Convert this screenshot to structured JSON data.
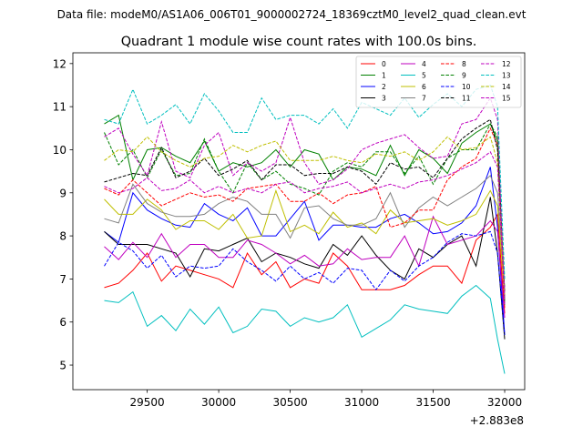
{
  "figure": {
    "suptitle": "Data file: modeM0/AS1A06_006T01_9000002724_18369cztM0_level2_quad_clean.evt"
  },
  "chart_data": {
    "type": "line",
    "title": "Quadrant 1 module wise count rates with 100.0s bins.",
    "xlabel": "",
    "ylabel": "",
    "x_offset_label": "+2.883e8",
    "xlim": [
      28980,
      32140
    ],
    "ylim": [
      4.43,
      12.25
    ],
    "x_ticks": [
      29500,
      30000,
      30500,
      31000,
      31500,
      32000
    ],
    "x_tick_labels": [
      "29500",
      "30000",
      "30500",
      "31000",
      "31500",
      "32000"
    ],
    "y_ticks": [
      5,
      6,
      7,
      8,
      9,
      10,
      11,
      12
    ],
    "y_tick_labels": [
      "5",
      "6",
      "7",
      "8",
      "9",
      "10",
      "11",
      "12"
    ],
    "grid": false,
    "legend_position": "upper right",
    "x": [
      29200,
      29300,
      29400,
      29500,
      29600,
      29700,
      29800,
      29900,
      30000,
      30100,
      30200,
      30300,
      30400,
      30500,
      30600,
      30700,
      30800,
      30900,
      31000,
      31100,
      31200,
      31300,
      31400,
      31500,
      31600,
      31700,
      31800,
      31900,
      31950,
      32000
    ],
    "series": [
      {
        "name": "0",
        "color": "#ff0000",
        "dash": "solid",
        "values": [
          6.8,
          6.9,
          7.2,
          7.6,
          6.95,
          7.3,
          7.2,
          7.1,
          7.0,
          6.8,
          7.6,
          7.1,
          7.4,
          6.8,
          7.0,
          6.9,
          7.6,
          7.3,
          6.75,
          6.75,
          6.75,
          6.85,
          7.1,
          7.3,
          7.3,
          6.9,
          7.9,
          8.2,
          8.5,
          6.2
        ]
      },
      {
        "name": "1",
        "color": "#008000",
        "dash": "solid",
        "values": [
          10.6,
          10.8,
          9.3,
          10.0,
          10.05,
          9.85,
          9.7,
          10.2,
          9.5,
          9.7,
          9.6,
          9.7,
          10.0,
          9.6,
          10.0,
          9.9,
          9.3,
          9.6,
          9.55,
          9.4,
          10.1,
          9.4,
          10.0,
          9.8,
          9.45,
          10.15,
          10.4,
          10.6,
          10.2,
          6.5
        ]
      },
      {
        "name": "2",
        "color": "#0000ff",
        "dash": "solid",
        "values": [
          8.1,
          7.85,
          9.0,
          8.6,
          8.4,
          8.25,
          8.2,
          8.75,
          8.5,
          8.35,
          8.65,
          8.0,
          8.0,
          8.4,
          8.8,
          7.9,
          8.25,
          8.25,
          8.2,
          8.2,
          8.4,
          8.5,
          8.3,
          8.05,
          8.1,
          8.3,
          8.7,
          9.6,
          8.2,
          5.7
        ]
      },
      {
        "name": "3",
        "color": "#000000",
        "dash": "solid",
        "values": [
          8.1,
          7.8,
          7.8,
          7.8,
          7.7,
          7.6,
          7.05,
          7.7,
          7.65,
          7.8,
          7.95,
          7.4,
          7.6,
          7.5,
          7.35,
          7.25,
          7.8,
          7.55,
          8.0,
          7.55,
          7.2,
          7.0,
          7.7,
          7.5,
          7.8,
          8.0,
          7.3,
          8.9,
          7.6,
          5.6
        ]
      },
      {
        "name": "4",
        "color": "#bf00bf",
        "dash": "solid",
        "values": [
          7.75,
          7.45,
          7.85,
          7.5,
          8.05,
          7.5,
          7.8,
          7.8,
          7.5,
          7.5,
          7.9,
          7.8,
          7.6,
          7.35,
          7.55,
          7.3,
          7.35,
          7.7,
          7.45,
          7.5,
          7.5,
          8.0,
          7.3,
          8.45,
          7.8,
          7.9,
          8.0,
          8.35,
          8.1,
          6.1
        ]
      },
      {
        "name": "5",
        "color": "#00bfbf",
        "dash": "solid",
        "values": [
          6.5,
          6.45,
          6.7,
          5.9,
          6.15,
          5.8,
          6.3,
          5.95,
          6.35,
          5.75,
          5.9,
          6.3,
          6.25,
          5.9,
          6.1,
          6.0,
          6.1,
          6.4,
          5.65,
          5.85,
          6.05,
          6.4,
          6.3,
          6.25,
          6.2,
          6.6,
          6.85,
          6.55,
          5.6,
          4.8
        ]
      },
      {
        "name": "6",
        "color": "#bfbf00",
        "dash": "solid",
        "values": [
          8.85,
          8.5,
          8.5,
          8.85,
          8.6,
          8.15,
          8.35,
          8.35,
          8.15,
          8.5,
          7.95,
          8.0,
          9.05,
          8.1,
          8.25,
          8.05,
          8.55,
          8.2,
          8.3,
          8.05,
          8.6,
          8.3,
          8.35,
          8.4,
          8.25,
          8.35,
          8.5,
          9.05,
          8.7,
          6.6
        ]
      },
      {
        "name": "7",
        "color": "#808080",
        "dash": "solid",
        "values": [
          8.4,
          8.3,
          9.2,
          8.75,
          8.55,
          8.45,
          8.45,
          8.5,
          8.75,
          8.9,
          8.8,
          8.5,
          8.5,
          7.95,
          8.65,
          8.7,
          8.4,
          8.25,
          8.25,
          8.4,
          9.0,
          8.2,
          8.65,
          8.9,
          8.7,
          8.9,
          9.1,
          9.4,
          9.0,
          6.8
        ]
      },
      {
        "name": "8",
        "color": "#ff0000",
        "dash": "dashed",
        "values": [
          9.1,
          8.95,
          9.3,
          9.0,
          8.7,
          8.85,
          9.0,
          8.9,
          8.95,
          8.8,
          9.1,
          9.15,
          9.2,
          8.8,
          8.8,
          9.0,
          8.75,
          8.95,
          9.0,
          9.15,
          8.2,
          8.3,
          8.6,
          8.6,
          9.3,
          9.6,
          9.8,
          10.5,
          10.1,
          6.3
        ]
      },
      {
        "name": "9",
        "color": "#008000",
        "dash": "dashed",
        "values": [
          10.4,
          9.65,
          10.0,
          9.35,
          10.0,
          9.4,
          9.45,
          10.25,
          9.5,
          9.0,
          9.7,
          9.3,
          9.5,
          9.2,
          9.1,
          8.95,
          9.5,
          9.7,
          9.6,
          9.95,
          9.95,
          9.45,
          9.85,
          9.2,
          9.8,
          10.0,
          10.0,
          10.6,
          10.3,
          6.4
        ]
      },
      {
        "name": "10",
        "color": "#0000ff",
        "dash": "dashed",
        "values": [
          7.3,
          7.85,
          7.65,
          7.25,
          7.55,
          7.05,
          7.3,
          7.25,
          7.3,
          7.7,
          7.4,
          7.2,
          6.95,
          7.3,
          7.0,
          7.15,
          6.9,
          7.25,
          7.2,
          6.75,
          7.2,
          6.95,
          7.3,
          7.5,
          7.85,
          8.05,
          8.0,
          8.1,
          7.6,
          5.7
        ]
      },
      {
        "name": "11",
        "color": "#000000",
        "dash": "dashed",
        "values": [
          9.25,
          9.35,
          9.45,
          9.4,
          10.05,
          9.35,
          9.5,
          9.8,
          9.4,
          9.55,
          9.75,
          9.3,
          9.65,
          9.65,
          9.4,
          9.45,
          9.45,
          9.6,
          9.5,
          9.2,
          9.7,
          9.55,
          9.6,
          9.35,
          9.8,
          10.25,
          10.5,
          10.7,
          10.0,
          6.7
        ]
      },
      {
        "name": "12",
        "color": "#bf00bf",
        "dash": "dashed",
        "values": [
          10.3,
          10.5,
          9.9,
          9.4,
          10.65,
          9.5,
          9.35,
          10.1,
          10.4,
          9.4,
          9.7,
          9.5,
          9.7,
          10.75,
          9.7,
          9.2,
          9.3,
          9.55,
          10.0,
          10.15,
          10.25,
          10.35,
          10.05,
          9.8,
          9.85,
          10.6,
          10.7,
          11.2,
          10.7,
          6.4
        ]
      },
      {
        "name": "13",
        "color": "#00bfbf",
        "dash": "dashed",
        "values": [
          10.7,
          10.6,
          11.4,
          10.6,
          10.8,
          11.05,
          10.6,
          11.3,
          10.9,
          10.4,
          10.4,
          11.2,
          10.7,
          10.8,
          10.8,
          10.6,
          10.95,
          10.5,
          11.1,
          10.95,
          10.8,
          11.2,
          10.75,
          11.05,
          11.3,
          11.0,
          11.4,
          11.5,
          11.0,
          7.0
        ]
      },
      {
        "name": "14",
        "color": "#bfbf00",
        "dash": "dashed",
        "values": [
          9.75,
          10.0,
          9.95,
          10.3,
          9.95,
          9.75,
          9.6,
          9.8,
          9.85,
          10.1,
          9.95,
          10.1,
          10.2,
          9.75,
          9.75,
          9.75,
          9.85,
          9.75,
          9.7,
          9.9,
          9.85,
          9.95,
          9.75,
          9.95,
          10.3,
          10.0,
          10.05,
          10.3,
          9.7,
          6.6
        ]
      },
      {
        "name": "15",
        "color": "#bf00bf",
        "dash": "dashed",
        "values": [
          9.15,
          9.0,
          9.1,
          9.35,
          9.05,
          9.1,
          9.3,
          9.0,
          9.15,
          9.0,
          9.1,
          9.0,
          9.2,
          9.25,
          9.0,
          9.1,
          9.15,
          9.25,
          9.0,
          9.1,
          9.2,
          9.1,
          9.25,
          9.3,
          9.4,
          9.55,
          9.7,
          9.95,
          9.6,
          6.6
        ]
      }
    ]
  }
}
